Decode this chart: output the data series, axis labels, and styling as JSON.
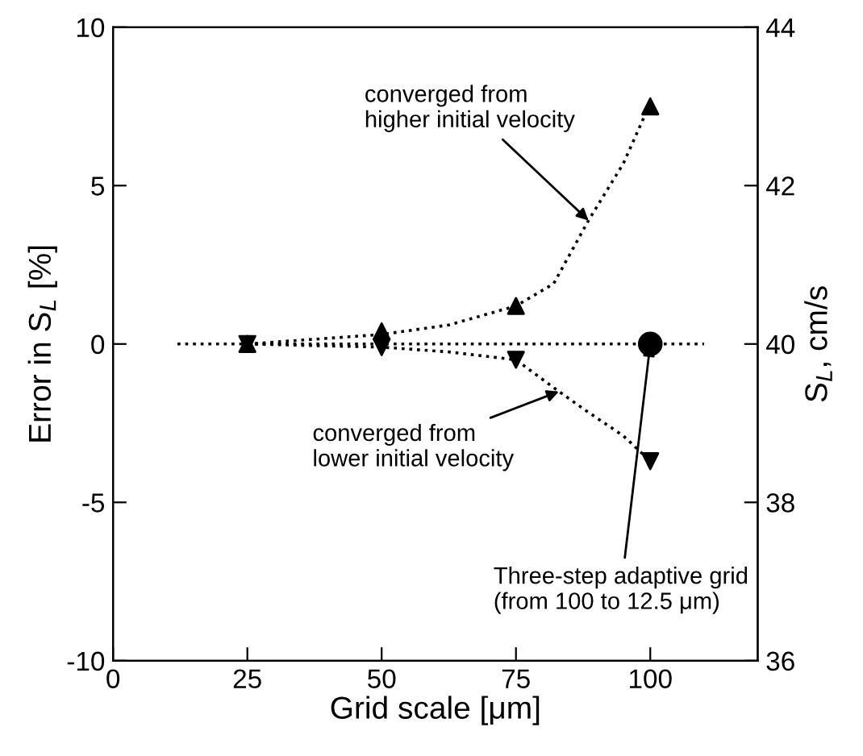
{
  "chart_data": {
    "type": "scatter",
    "xlabel": "Grid scale [μm]",
    "ylabel": "Error in S$_{L}$ [%]",
    "y2label": "S$_{L}$, cm/s",
    "xlim": [
      0,
      120
    ],
    "xticks": [
      0,
      25,
      50,
      75,
      100
    ],
    "ylim": [
      -10,
      10
    ],
    "yticks": [
      -10,
      -5,
      0,
      5,
      10
    ],
    "y2lim": [
      36,
      44
    ],
    "y2ticks": [
      36,
      38,
      40,
      42,
      44
    ],
    "grid": false,
    "legend": false,
    "series": [
      {
        "type": "line",
        "color": "#000000",
        "marker": "none",
        "line_style": "dotted",
        "x": [
          12,
          110
        ],
        "values": [
          0,
          0
        ]
      },
      {
        "type": "line",
        "color": "#000000",
        "marker": "none",
        "line_style": "dotted",
        "x": [
          25,
          50,
          62.5,
          75,
          82,
          88.5,
          95,
          100
        ],
        "values": [
          0,
          0.3,
          0.6,
          1.2,
          1.9,
          3.9,
          5.7,
          7.6
        ]
      },
      {
        "type": "line",
        "color": "#000000",
        "marker": "none",
        "line_style": "dotted",
        "x": [
          25,
          50,
          62.5,
          75,
          83,
          88,
          95,
          100
        ],
        "values": [
          0,
          -0.1,
          -0.25,
          -0.5,
          -1.5,
          -2.1,
          -2.9,
          -3.7
        ]
      },
      {
        "color": "#000000",
        "marker": "triangle",
        "x": [
          25,
          50,
          75,
          100
        ],
        "values": [
          0,
          0.4,
          1.2,
          7.5
        ]
      },
      {
        "color": "#000000",
        "marker": "triangle_down",
        "x": [
          25,
          50,
          75,
          100
        ],
        "values": [
          0,
          -0.1,
          -0.5,
          -3.7
        ]
      },
      {
        "color": "#000000",
        "marker": "circle",
        "x": [
          100
        ],
        "values": [
          0
        ]
      }
    ],
    "annotations": [
      {
        "text": "converged from\nhigher initial velocity",
        "x": 88.5,
        "y": 3.9
      },
      {
        "text": "converged from\nlower initial velocity",
        "x": 83,
        "y": -1.5
      },
      {
        "text": "Three-step adaptive grid\n(from 100 to 12.5 μm)",
        "x": 100,
        "y": 0
      }
    ]
  }
}
